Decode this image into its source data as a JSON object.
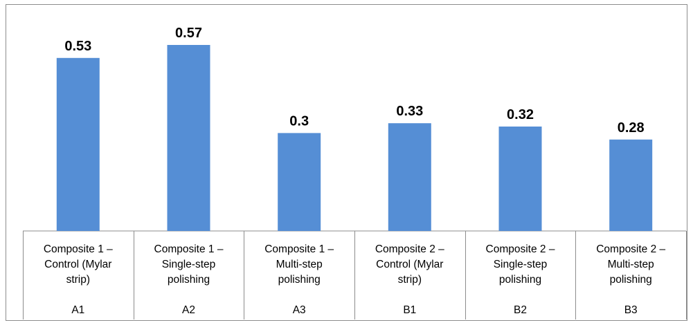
{
  "chart_data": {
    "type": "bar",
    "title": "",
    "xlabel": "",
    "ylabel": "",
    "ylim": [
      0,
      0.6
    ],
    "grid": false,
    "legend": "none",
    "bar_color": "#558ED5",
    "categories": [
      {
        "label_lines": [
          "Composite 1 –",
          "Control (Mylar",
          "strip)"
        ],
        "code": "A1"
      },
      {
        "label_lines": [
          "Composite 1 –",
          "Single-step",
          "polishing"
        ],
        "code": "A2"
      },
      {
        "label_lines": [
          "Composite 1 –",
          "Multi-step",
          "polishing"
        ],
        "code": "A3"
      },
      {
        "label_lines": [
          "Composite 2 –",
          "Control (Mylar",
          "strip)"
        ],
        "code": "B1"
      },
      {
        "label_lines": [
          "Composite 2 –",
          "Single-step",
          "polishing"
        ],
        "code": "B2"
      },
      {
        "label_lines": [
          "Composite 2 –",
          "Multi-step",
          "polishing"
        ],
        "code": "B3"
      }
    ],
    "values": [
      0.53,
      0.57,
      0.3,
      0.33,
      0.32,
      0.28
    ],
    "data_labels": [
      "0.53",
      "0.57",
      "0.3",
      "0.33",
      "0.32",
      "0.28"
    ]
  }
}
